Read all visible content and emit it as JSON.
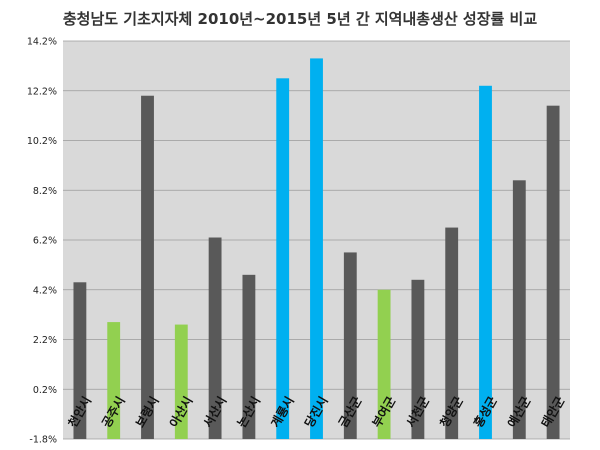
{
  "chart_data": {
    "type": "bar",
    "title": "충청남도 기초지자체 2010년~2015년 5년 간 지역내총생산 성장률 비교",
    "xlabel": "",
    "ylabel": "",
    "ylim": [
      -1.8,
      14.2
    ],
    "yticks": [
      "14.2%",
      "12.2%",
      "10.2%",
      "8.2%",
      "6.2%",
      "4.2%",
      "2.2%",
      "0.2%",
      "-1.8%"
    ],
    "ytick_values": [
      14.2,
      12.2,
      10.2,
      8.2,
      6.2,
      4.2,
      2.2,
      0.2,
      -1.8
    ],
    "grid": true,
    "legend": "none",
    "categories": [
      "천안시",
      "공주시",
      "보령시",
      "아산시",
      "서산시",
      "논산시",
      "계룡시",
      "당진시",
      "금산군",
      "부여군",
      "서천군",
      "청양군",
      "홍성군",
      "예산군",
      "태안군"
    ],
    "values": [
      4.5,
      2.9,
      12.0,
      2.8,
      6.3,
      4.8,
      12.7,
      13.5,
      5.7,
      4.2,
      4.6,
      6.7,
      12.4,
      8.6,
      11.6
    ],
    "colors": [
      "#595959",
      "#92d050",
      "#595959",
      "#92d050",
      "#595959",
      "#595959",
      "#00b0f0",
      "#00b0f0",
      "#595959",
      "#92d050",
      "#595959",
      "#595959",
      "#00b0f0",
      "#595959",
      "#595959"
    ]
  }
}
